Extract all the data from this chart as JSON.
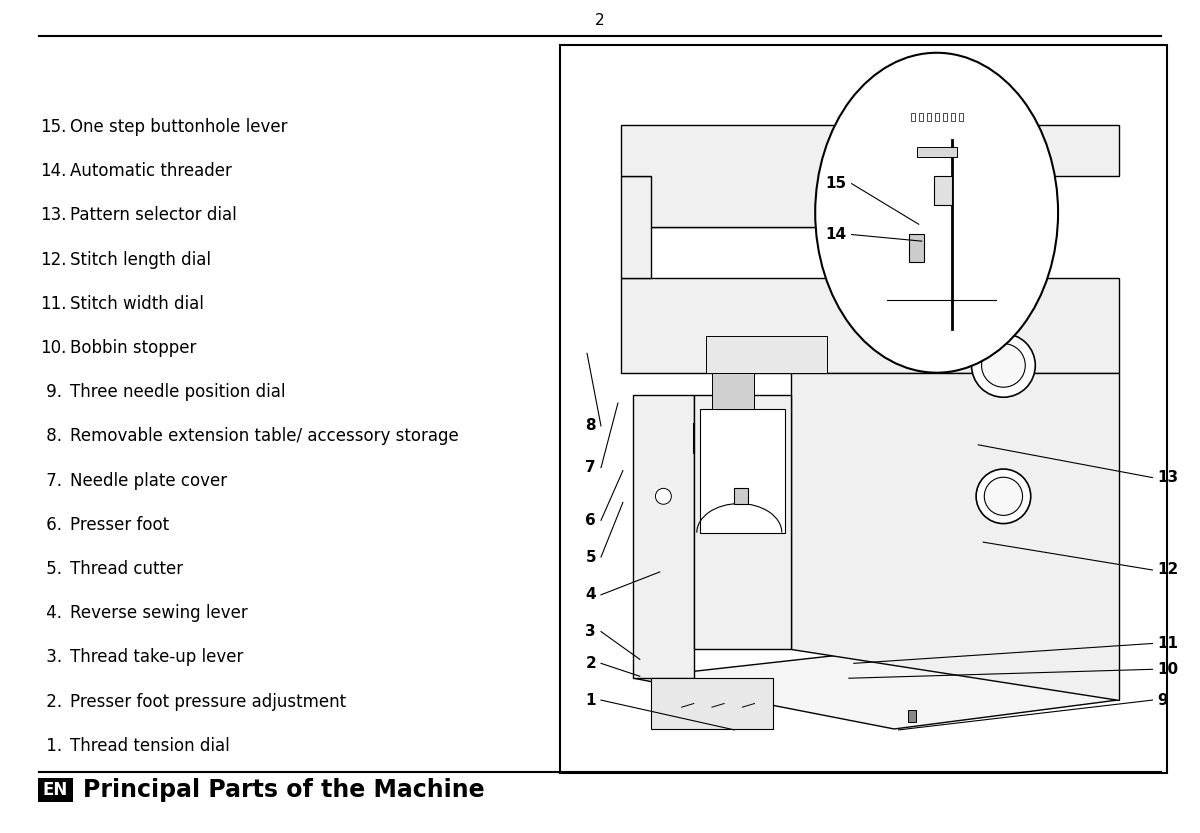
{
  "title": "Principal Parts of the Machine",
  "en_label": "EN",
  "background_color": "#ffffff",
  "text_color": "#000000",
  "parts": [
    [
      1,
      "Thread tension dial"
    ],
    [
      2,
      "Presser foot pressure adjustment"
    ],
    [
      3,
      "Thread take-up lever"
    ],
    [
      4,
      "Reverse sewing lever"
    ],
    [
      5,
      "Thread cutter"
    ],
    [
      6,
      "Presser foot"
    ],
    [
      7,
      "Needle plate cover"
    ],
    [
      8,
      "Removable extension table/ accessory storage"
    ],
    [
      9,
      "Three needle position dial"
    ],
    [
      10,
      "Bobbin stopper"
    ],
    [
      11,
      "Stitch width dial"
    ],
    [
      12,
      "Stitch length dial"
    ],
    [
      13,
      "Pattern selector dial"
    ],
    [
      14,
      "Automatic threader"
    ],
    [
      15,
      "One step buttonhole lever"
    ]
  ],
  "page_number": "2",
  "title_fontsize": 17,
  "list_fontsize": 12,
  "callout_fontsize": 11
}
